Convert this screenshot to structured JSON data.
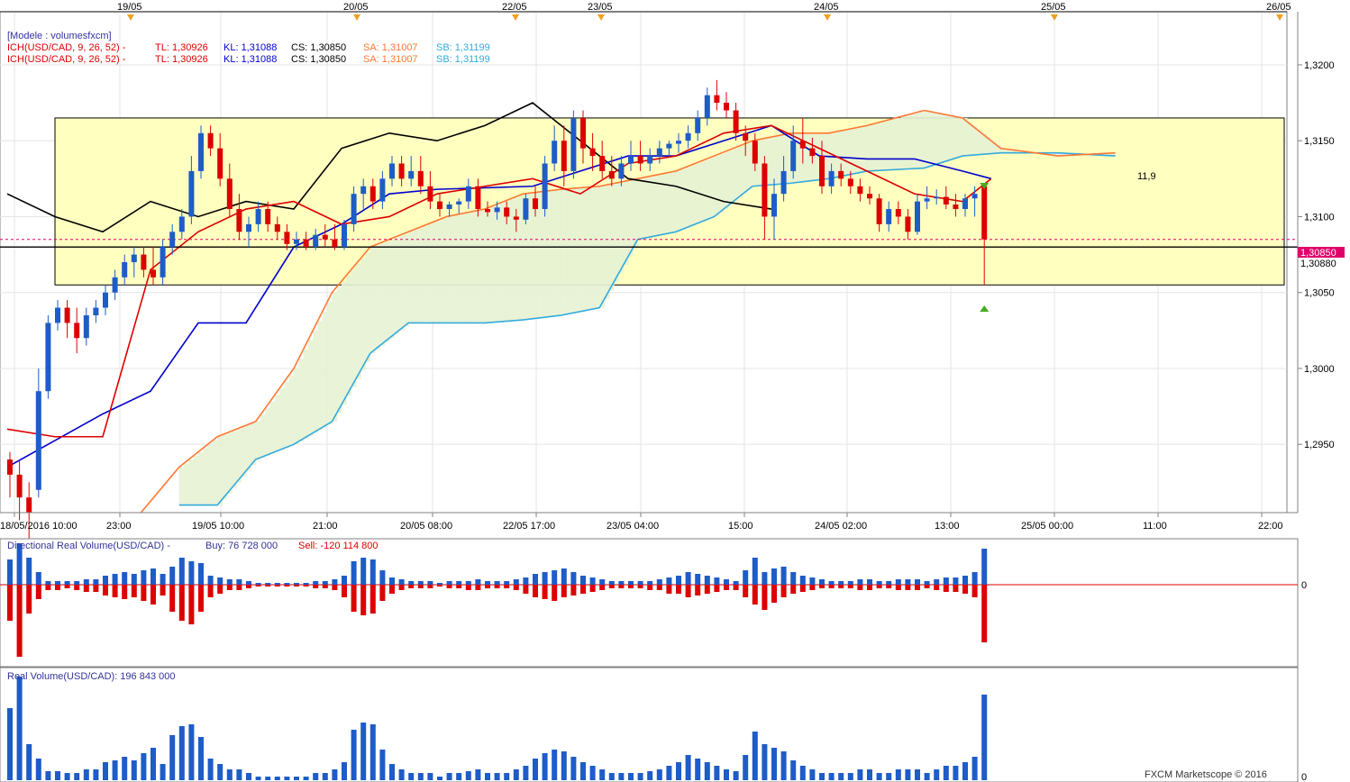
{
  "top_dates": [
    "19/05",
    "20/05",
    "22/05",
    "23/05",
    "24/05",
    "25/05",
    "26/05"
  ],
  "x_ticks": [
    "18/05/2016 10:00",
    "23:00",
    "19/05 10:00",
    "21:00",
    "20/05 08:00",
    "22/05 17:00",
    "23/05 04:00",
    "15:00",
    "24/05 02:00",
    "13:00",
    "25/05 00:00",
    "11:00",
    "22:00"
  ],
  "price_ticks": [
    "1,3200",
    "1,3150",
    "1,3100",
    "1,3050",
    "1,3000",
    "1,2950"
  ],
  "legend": {
    "model": "[Modele : volumesfxcm]",
    "line1": {
      "ich": "ICH(USD/CAD, 9, 26, 52) -",
      "tl": "TL: 1,30926",
      "kl": "KL: 1,31088",
      "cs": "CS: 1,30850",
      "sa": "SA: 1,31007",
      "sb": "SB: 1,31199"
    },
    "line2": {
      "ich": "ICH(USD/CAD, 9, 26, 52) -",
      "tl": "TL: 1,30926",
      "kl": "KL: 1,31088",
      "cs": "CS: 1,30850",
      "sa": "SA: 1,31007",
      "sb": "SB: 1,31199"
    }
  },
  "current_price_label": "1,30850",
  "current_price_label2": "1,30880",
  "annotation_value": "11,9",
  "drv": {
    "title": "Directional Real Volume(USD/CAD) -",
    "buy": "Buy: 76 728 000",
    "sell": "Sell: -120 114 800",
    "zero": "0"
  },
  "rv": {
    "title": "Real Volume(USD/CAD): 196 843 000",
    "zero": "0"
  },
  "copyright": "FXCM Marketscope © 2016",
  "colors": {
    "bull": "#1e5cc8",
    "bear": "#dd0000",
    "tenkan": "#dd0000",
    "kijun": "#0000cc",
    "chikou": "#000000",
    "spanA": "#ff7733",
    "spanB": "#33aadd",
    "zoneFill": "#ffffc0",
    "grid": "#e4e4e4"
  },
  "chart_data": {
    "type": "candlestick",
    "y_range": [
      1.2905,
      1.3235
    ],
    "zone": [
      1.3055,
      1.3165
    ],
    "current_price": 1.3085,
    "support_price": 1.308,
    "candles": [
      [
        1.294,
        1.2945,
        1.2915,
        1.293
      ],
      [
        1.293,
        1.294,
        1.29,
        1.2915
      ],
      [
        1.2915,
        1.2925,
        1.288,
        1.2905
      ],
      [
        1.292,
        1.3,
        1.2915,
        1.2985
      ],
      [
        1.2985,
        1.3035,
        1.298,
        1.303
      ],
      [
        1.303,
        1.3045,
        1.3025,
        1.304
      ],
      [
        1.304,
        1.3045,
        1.302,
        1.303
      ],
      [
        1.303,
        1.304,
        1.301,
        1.302
      ],
      [
        1.302,
        1.304,
        1.3015,
        1.3035
      ],
      [
        1.3035,
        1.3045,
        1.303,
        1.304
      ],
      [
        1.304,
        1.3055,
        1.3035,
        1.305
      ],
      [
        1.305,
        1.3065,
        1.3045,
        1.306
      ],
      [
        1.306,
        1.3075,
        1.3055,
        1.307
      ],
      [
        1.307,
        1.308,
        1.306,
        1.3075
      ],
      [
        1.3075,
        1.308,
        1.306,
        1.3065
      ],
      [
        1.3065,
        1.308,
        1.3055,
        1.306
      ],
      [
        1.306,
        1.3085,
        1.3055,
        1.308
      ],
      [
        1.308,
        1.3095,
        1.3075,
        1.309
      ],
      [
        1.309,
        1.3105,
        1.3085,
        1.31
      ],
      [
        1.31,
        1.314,
        1.3095,
        1.313
      ],
      [
        1.313,
        1.316,
        1.3125,
        1.3155
      ],
      [
        1.3155,
        1.316,
        1.314,
        1.3145
      ],
      [
        1.3145,
        1.3155,
        1.312,
        1.3125
      ],
      [
        1.3125,
        1.3135,
        1.31,
        1.3105
      ],
      [
        1.3105,
        1.3115,
        1.3085,
        1.309
      ],
      [
        1.309,
        1.31,
        1.308,
        1.3095
      ],
      [
        1.3095,
        1.311,
        1.309,
        1.3105
      ],
      [
        1.3105,
        1.311,
        1.309,
        1.3095
      ],
      [
        1.3095,
        1.31,
        1.3085,
        1.309
      ],
      [
        1.309,
        1.3095,
        1.3078,
        1.3082
      ],
      [
        1.3082,
        1.309,
        1.3078,
        1.3085
      ],
      [
        1.3085,
        1.309,
        1.3078,
        1.308
      ],
      [
        1.308,
        1.3092,
        1.3078,
        1.3088
      ],
      [
        1.3088,
        1.3095,
        1.308,
        1.3085
      ],
      [
        1.3085,
        1.3095,
        1.3078,
        1.308
      ],
      [
        1.308,
        1.3098,
        1.3078,
        1.3095
      ],
      [
        1.3095,
        1.312,
        1.309,
        1.3115
      ],
      [
        1.3115,
        1.3125,
        1.3105,
        1.312
      ],
      [
        1.312,
        1.3125,
        1.3105,
        1.311
      ],
      [
        1.311,
        1.313,
        1.3105,
        1.3125
      ],
      [
        1.3125,
        1.314,
        1.312,
        1.3135
      ],
      [
        1.3135,
        1.314,
        1.312,
        1.3125
      ],
      [
        1.3125,
        1.314,
        1.312,
        1.313
      ],
      [
        1.313,
        1.314,
        1.3115,
        1.312
      ],
      [
        1.312,
        1.313,
        1.3105,
        1.311
      ],
      [
        1.311,
        1.3115,
        1.31,
        1.3105
      ],
      [
        1.3105,
        1.311,
        1.31,
        1.3108
      ],
      [
        1.3108,
        1.3112,
        1.3102,
        1.311
      ],
      [
        1.311,
        1.3125,
        1.3105,
        1.312
      ],
      [
        1.312,
        1.3125,
        1.31,
        1.3105
      ],
      [
        1.3105,
        1.311,
        1.31,
        1.3103
      ],
      [
        1.3103,
        1.311,
        1.3098,
        1.3106
      ],
      [
        1.3106,
        1.311,
        1.3095,
        1.31
      ],
      [
        1.31,
        1.3105,
        1.309,
        1.3098
      ],
      [
        1.3098,
        1.3115,
        1.3095,
        1.3112
      ],
      [
        1.3112,
        1.312,
        1.31,
        1.3105
      ],
      [
        1.3105,
        1.314,
        1.31,
        1.3135
      ],
      [
        1.3135,
        1.316,
        1.313,
        1.315
      ],
      [
        1.315,
        1.316,
        1.312,
        1.313
      ],
      [
        1.313,
        1.317,
        1.3125,
        1.3165
      ],
      [
        1.3165,
        1.317,
        1.3135,
        1.3145
      ],
      [
        1.3145,
        1.3155,
        1.313,
        1.314
      ],
      [
        1.314,
        1.315,
        1.3125,
        1.313
      ],
      [
        1.313,
        1.314,
        1.312,
        1.3125
      ],
      [
        1.3125,
        1.314,
        1.312,
        1.3135
      ],
      [
        1.3135,
        1.315,
        1.313,
        1.314
      ],
      [
        1.314,
        1.315,
        1.313,
        1.3135
      ],
      [
        1.3135,
        1.3145,
        1.313,
        1.314
      ],
      [
        1.314,
        1.315,
        1.3135,
        1.3145
      ],
      [
        1.3145,
        1.315,
        1.314,
        1.3148
      ],
      [
        1.3148,
        1.3155,
        1.3142,
        1.315
      ],
      [
        1.315,
        1.316,
        1.3145,
        1.3155
      ],
      [
        1.3155,
        1.317,
        1.315,
        1.3165
      ],
      [
        1.3165,
        1.3185,
        1.316,
        1.318
      ],
      [
        1.318,
        1.319,
        1.317,
        1.3175
      ],
      [
        1.3175,
        1.3182,
        1.3165,
        1.317
      ],
      [
        1.317,
        1.3175,
        1.315,
        1.3155
      ],
      [
        1.3155,
        1.316,
        1.314,
        1.315
      ],
      [
        1.315,
        1.3155,
        1.313,
        1.3135
      ],
      [
        1.3135,
        1.314,
        1.3085,
        1.31
      ],
      [
        1.31,
        1.3125,
        1.3085,
        1.3115
      ],
      [
        1.3115,
        1.314,
        1.311,
        1.313
      ],
      [
        1.313,
        1.316,
        1.3125,
        1.315
      ],
      [
        1.315,
        1.3165,
        1.3135,
        1.3145
      ],
      [
        1.3145,
        1.3152,
        1.3135,
        1.314
      ],
      [
        1.314,
        1.315,
        1.3115,
        1.312
      ],
      [
        1.312,
        1.3135,
        1.3115,
        1.313
      ],
      [
        1.313,
        1.3135,
        1.312,
        1.3125
      ],
      [
        1.3125,
        1.313,
        1.3115,
        1.312
      ],
      [
        1.312,
        1.3125,
        1.311,
        1.3115
      ],
      [
        1.3115,
        1.312,
        1.3108,
        1.3112
      ],
      [
        1.3112,
        1.3115,
        1.309,
        1.3095
      ],
      [
        1.3095,
        1.311,
        1.309,
        1.3105
      ],
      [
        1.3105,
        1.311,
        1.3095,
        1.31
      ],
      [
        1.31,
        1.3105,
        1.3085,
        1.309
      ],
      [
        1.309,
        1.3115,
        1.3088,
        1.311
      ],
      [
        1.311,
        1.312,
        1.3105,
        1.3112
      ],
      [
        1.3112,
        1.3118,
        1.3108,
        1.3113
      ],
      [
        1.3113,
        1.312,
        1.3105,
        1.3108
      ],
      [
        1.3108,
        1.3115,
        1.31,
        1.3105
      ],
      [
        1.3105,
        1.3115,
        1.31,
        1.3112
      ],
      [
        1.3112,
        1.312,
        1.31,
        1.3115
      ],
      [
        1.312,
        1.3122,
        1.3055,
        1.3085
      ]
    ],
    "tenkan": [
      [
        0,
        1.296
      ],
      [
        5,
        1.2955
      ],
      [
        10,
        1.2955
      ],
      [
        15,
        1.3065
      ],
      [
        20,
        1.309
      ],
      [
        25,
        1.3105
      ],
      [
        30,
        1.311
      ],
      [
        35,
        1.3095
      ],
      [
        40,
        1.31
      ],
      [
        45,
        1.3115
      ],
      [
        50,
        1.312
      ],
      [
        55,
        1.3125
      ],
      [
        60,
        1.3115
      ],
      [
        65,
        1.3135
      ],
      [
        70,
        1.314
      ],
      [
        75,
        1.3155
      ],
      [
        80,
        1.316
      ],
      [
        85,
        1.3145
      ],
      [
        90,
        1.313
      ],
      [
        95,
        1.3115
      ],
      [
        100,
        1.311
      ],
      [
        103,
        1.3125
      ]
    ],
    "kijun": [
      [
        0,
        1.2935
      ],
      [
        10,
        1.297
      ],
      [
        15,
        1.2985
      ],
      [
        20,
        1.303
      ],
      [
        25,
        1.303
      ],
      [
        30,
        1.308
      ],
      [
        35,
        1.3095
      ],
      [
        40,
        1.3115
      ],
      [
        45,
        1.3118
      ],
      [
        55,
        1.312
      ],
      [
        60,
        1.313
      ],
      [
        65,
        1.314
      ],
      [
        70,
        1.314
      ],
      [
        75,
        1.315
      ],
      [
        80,
        1.316
      ],
      [
        85,
        1.314
      ],
      [
        90,
        1.3138
      ],
      [
        95,
        1.3138
      ],
      [
        100,
        1.313
      ],
      [
        103,
        1.3125
      ]
    ],
    "chikou": [
      [
        0,
        1.3115
      ],
      [
        5,
        1.31
      ],
      [
        10,
        1.309
      ],
      [
        15,
        1.311
      ],
      [
        20,
        1.31
      ],
      [
        25,
        1.311
      ],
      [
        30,
        1.3105
      ],
      [
        35,
        1.3145
      ],
      [
        40,
        1.3155
      ],
      [
        45,
        1.315
      ],
      [
        50,
        1.316
      ],
      [
        55,
        1.3175
      ],
      [
        60,
        1.315
      ],
      [
        65,
        1.3125
      ],
      [
        70,
        1.312
      ],
      [
        75,
        1.311
      ],
      [
        80,
        1.3105
      ]
    ],
    "spanA": [
      [
        14,
        1.2905
      ],
      [
        18,
        1.2935
      ],
      [
        22,
        1.2955
      ],
      [
        26,
        1.2965
      ],
      [
        30,
        1.3
      ],
      [
        34,
        1.305
      ],
      [
        38,
        1.308
      ],
      [
        42,
        1.309
      ],
      [
        46,
        1.31
      ],
      [
        50,
        1.3105
      ],
      [
        54,
        1.3115
      ],
      [
        58,
        1.3118
      ],
      [
        62,
        1.312
      ],
      [
        66,
        1.3125
      ],
      [
        70,
        1.313
      ],
      [
        74,
        1.314
      ],
      [
        78,
        1.315
      ],
      [
        82,
        1.3155
      ],
      [
        86,
        1.3155
      ],
      [
        90,
        1.316
      ],
      [
        96,
        1.317
      ],
      [
        100,
        1.3165
      ],
      [
        104,
        1.3145
      ],
      [
        110,
        1.314
      ],
      [
        116,
        1.3142
      ]
    ],
    "spanB": [
      [
        18,
        1.291
      ],
      [
        22,
        1.291
      ],
      [
        26,
        1.294
      ],
      [
        30,
        1.295
      ],
      [
        34,
        1.2965
      ],
      [
        38,
        1.301
      ],
      [
        42,
        1.303
      ],
      [
        46,
        1.303
      ],
      [
        50,
        1.303
      ],
      [
        54,
        1.3032
      ],
      [
        58,
        1.3035
      ],
      [
        62,
        1.304
      ],
      [
        66,
        1.3085
      ],
      [
        70,
        1.309
      ],
      [
        74,
        1.31
      ],
      [
        78,
        1.312
      ],
      [
        82,
        1.3122
      ],
      [
        86,
        1.3125
      ],
      [
        90,
        1.313
      ],
      [
        96,
        1.3132
      ],
      [
        100,
        1.314
      ],
      [
        104,
        1.3142
      ],
      [
        110,
        1.3142
      ],
      [
        116,
        1.314
      ]
    ],
    "drv_pos": [
      28,
      46,
      30,
      14,
      4,
      4,
      4,
      4,
      6,
      6,
      10,
      12,
      14,
      12,
      16,
      18,
      12,
      20,
      30,
      26,
      24,
      10,
      8,
      6,
      6,
      4,
      2,
      2,
      2,
      2,
      2,
      2,
      4,
      4,
      6,
      10,
      26,
      30,
      28,
      16,
      8,
      6,
      4,
      4,
      4,
      2,
      4,
      4,
      4,
      6,
      4,
      4,
      4,
      6,
      8,
      12,
      14,
      16,
      18,
      14,
      10,
      8,
      6,
      4,
      4,
      4,
      4,
      4,
      6,
      8,
      10,
      14,
      12,
      10,
      8,
      6,
      4,
      16,
      30,
      14,
      18,
      20,
      14,
      10,
      8,
      6,
      4,
      4,
      4,
      6,
      6,
      4,
      4,
      6,
      6,
      6,
      4,
      6,
      8,
      8,
      10,
      14,
      40
    ],
    "drv_neg": [
      40,
      80,
      32,
      16,
      6,
      6,
      4,
      6,
      8,
      8,
      12,
      14,
      16,
      14,
      18,
      22,
      12,
      30,
      40,
      44,
      30,
      14,
      10,
      6,
      6,
      4,
      2,
      2,
      2,
      2,
      2,
      2,
      4,
      4,
      6,
      14,
      30,
      34,
      32,
      18,
      10,
      6,
      4,
      4,
      4,
      2,
      4,
      4,
      6,
      6,
      4,
      4,
      4,
      6,
      10,
      14,
      16,
      18,
      14,
      12,
      10,
      8,
      6,
      4,
      4,
      4,
      4,
      6,
      6,
      10,
      10,
      14,
      12,
      10,
      8,
      6,
      6,
      14,
      22,
      28,
      20,
      14,
      10,
      8,
      6,
      4,
      4,
      4,
      4,
      6,
      6,
      4,
      4,
      6,
      6,
      6,
      4,
      6,
      8,
      8,
      10,
      14,
      64
    ],
    "rv": [
      80,
      115,
      40,
      24,
      10,
      10,
      8,
      8,
      12,
      12,
      20,
      22,
      26,
      22,
      30,
      36,
      18,
      50,
      60,
      62,
      48,
      24,
      18,
      12,
      12,
      8,
      4,
      4,
      4,
      4,
      4,
      4,
      8,
      8,
      12,
      20,
      56,
      64,
      62,
      34,
      18,
      12,
      8,
      8,
      8,
      4,
      8,
      8,
      10,
      12,
      8,
      8,
      8,
      12,
      16,
      24,
      30,
      34,
      32,
      26,
      20,
      16,
      12,
      8,
      8,
      8,
      8,
      10,
      12,
      16,
      20,
      28,
      24,
      20,
      16,
      12,
      10,
      28,
      54,
      40,
      36,
      32,
      22,
      16,
      12,
      8,
      8,
      8,
      8,
      12,
      12,
      8,
      8,
      12,
      12,
      12,
      8,
      12,
      16,
      16,
      20,
      26,
      95
    ]
  }
}
